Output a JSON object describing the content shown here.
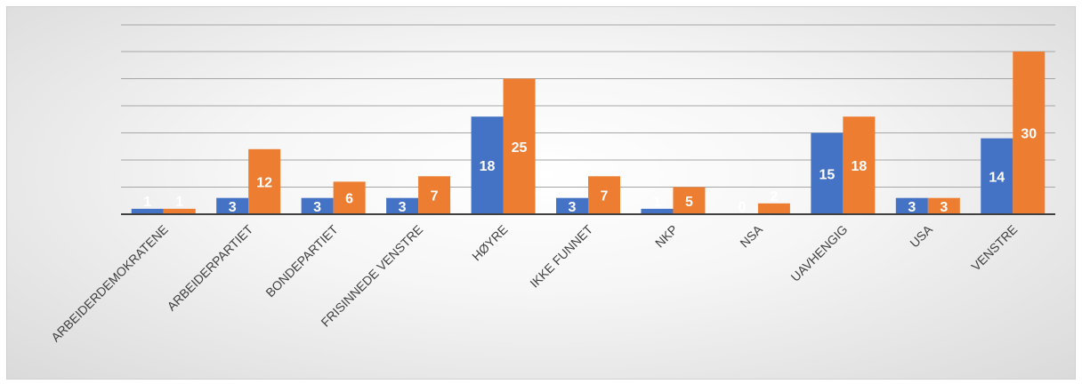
{
  "chart_data": {
    "type": "bar",
    "categories": [
      "ARBEIDERDEMOKRATENE",
      "ARBEIDERPARTIET",
      "BONDEPARTIET",
      "FRISINNEDE VENSTRE",
      "HØYRE",
      "IKKE FUNNET",
      "NKP",
      "NSA",
      "UAVHENGIG",
      "USA",
      "VENSTRE"
    ],
    "series": [
      {
        "color": "#4472c4",
        "values": [
          1,
          3,
          3,
          3,
          18,
          3,
          1,
          0,
          15,
          3,
          14
        ]
      },
      {
        "color": "#ed7d31",
        "values": [
          1,
          12,
          6,
          7,
          25,
          7,
          5,
          2,
          18,
          3,
          30
        ]
      }
    ],
    "data_labels_shown": true,
    "ylim": [
      0,
      30
    ],
    "y_gridline_step": 5,
    "y_tick_labels_shown": false,
    "grid": true,
    "legend": "none"
  }
}
